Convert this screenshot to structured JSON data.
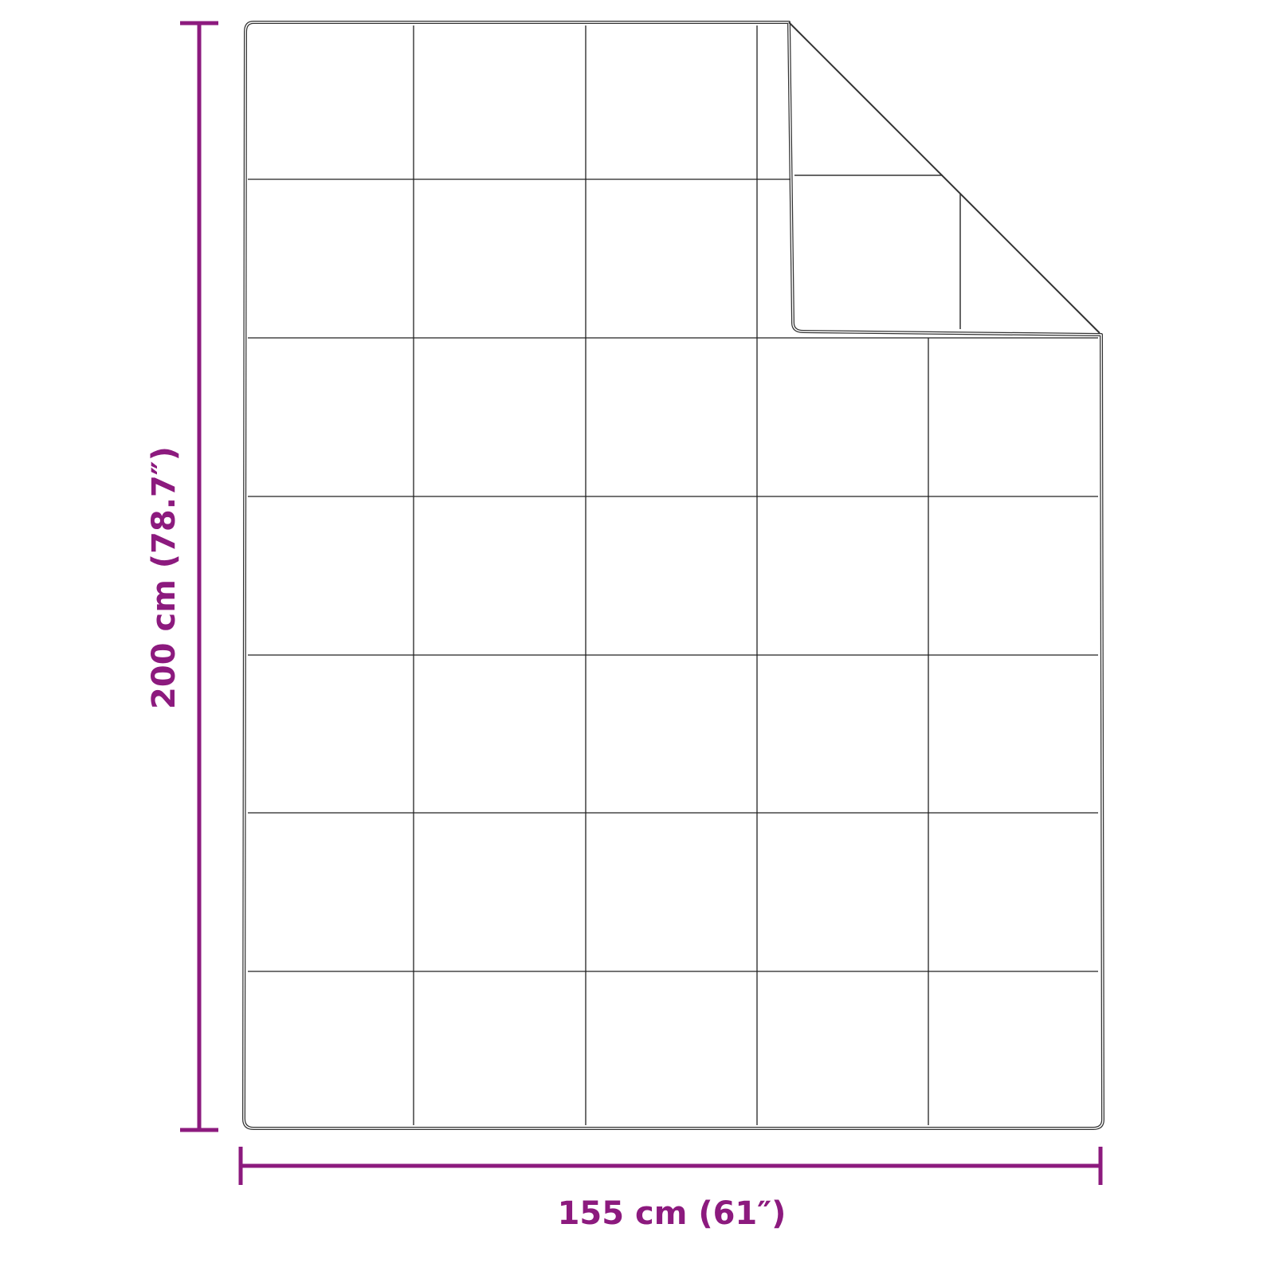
{
  "colors": {
    "dimension": "#8c1a7e",
    "outline": "#333333",
    "background": "#ffffff"
  },
  "dimensions": {
    "height_label": "200 cm (78.7″)",
    "width_label": "155 cm (61″)"
  },
  "blanket": {
    "columns": 5,
    "rows": 7,
    "folded_corner": "top-right"
  }
}
